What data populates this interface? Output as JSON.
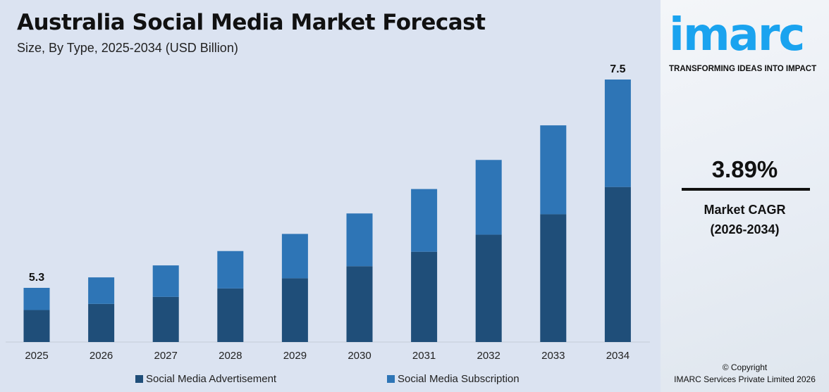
{
  "header": {
    "title": "Australia Social Media Market Forecast",
    "subtitle": "Size, By Type, 2025-2034 (USD Billion)"
  },
  "chart_data": {
    "type": "bar",
    "stacked": true,
    "title": "Australia Social Media Market Forecast",
    "subtitle": "Size, By Type, 2025-2034 (USD Billion)",
    "categories": [
      "2025",
      "2026",
      "2027",
      "2028",
      "2029",
      "2030",
      "2031",
      "2032",
      "2033",
      "2034"
    ],
    "series": [
      {
        "name": "Social Media Advertisement",
        "color": "#1f4e79",
        "values": [
          3.13,
          3.25,
          3.37,
          3.5,
          3.64,
          3.78,
          3.93,
          4.08,
          4.24,
          4.43
        ]
      },
      {
        "name": "Social Media Subscription",
        "color": "#2e75b6",
        "values": [
          2.17,
          2.26,
          2.35,
          2.44,
          2.53,
          2.63,
          2.73,
          2.84,
          2.95,
          3.07
        ]
      }
    ],
    "data_labels": {
      "0": "5.3",
      "9": "7.5"
    },
    "grid": false,
    "legend": "bottom"
  },
  "sidebar": {
    "brand": "imarc",
    "tagline": "TRANSFORMING IDEAS INTO IMPACT",
    "cagr_value": "3.89%",
    "cagr_label": "Market CAGR",
    "cagr_period": "(2026-2034)",
    "copyright": "© Copyright",
    "company": "IMARC Services Private Limited 2026",
    "brand_color": "#1aa3ef"
  }
}
